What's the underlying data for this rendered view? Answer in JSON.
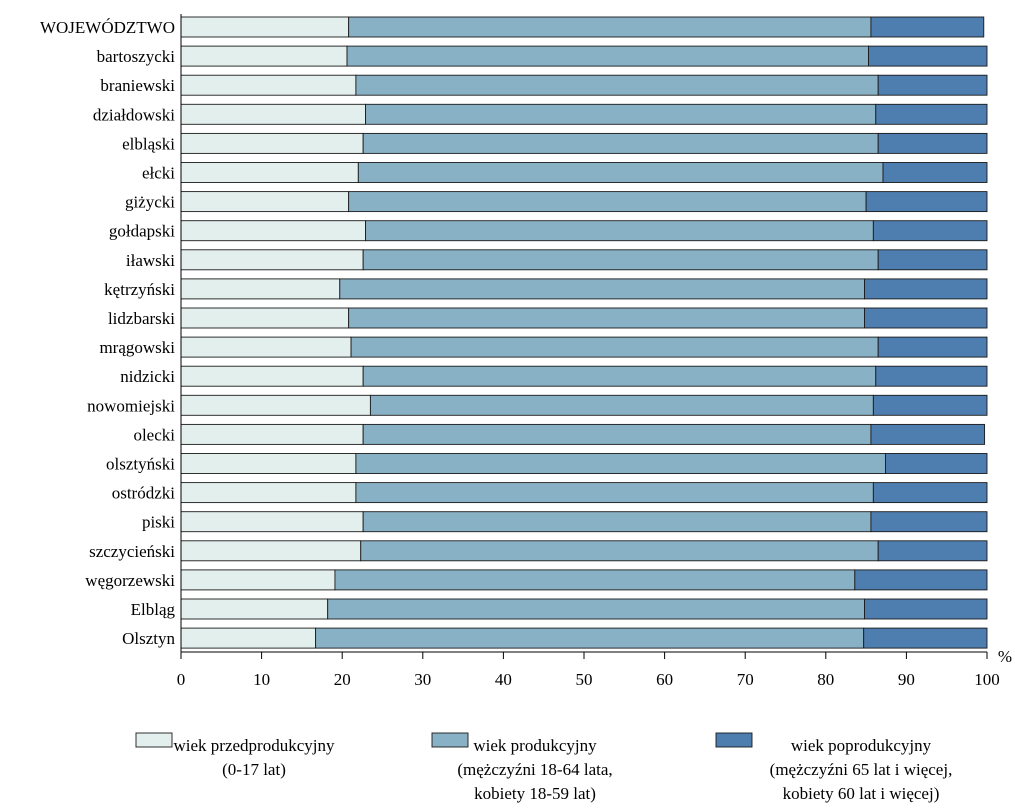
{
  "chart_data": {
    "type": "bar",
    "orientation": "horizontal",
    "stacked": true,
    "categories": [
      "WOJEWÓDZTWO",
      "bartoszycki",
      "braniewski",
      "działdowski",
      "elbląski",
      "ełcki",
      "giżycki",
      "gołdapski",
      "iławski",
      "kętrzyński",
      "lidzbarski",
      "mrągowski",
      "nidzicki",
      "nowomiejski",
      "olecki",
      "olsztyński",
      "ostródzki",
      "piski",
      "szczycieński",
      "węgorzewski",
      "Elbląg",
      "Olsztyn"
    ],
    "series": [
      {
        "name": "wiek przedprodukcyjny",
        "name_line2": "(0-17 lat)",
        "color": "#e3efed",
        "values": [
          20.8,
          20.6,
          21.7,
          22.9,
          22.6,
          22.0,
          20.8,
          22.9,
          22.6,
          19.7,
          20.8,
          21.1,
          22.6,
          23.5,
          22.6,
          21.7,
          21.7,
          22.6,
          22.3,
          19.1,
          18.2,
          16.7
        ]
      },
      {
        "name": "wiek produkcyjny",
        "name_line2": "(mężczyźni 18-64 lata,",
        "name_line3": "kobiety 18-59 lat)",
        "color": "#89b1c5",
        "values": [
          64.8,
          64.7,
          64.8,
          63.3,
          63.9,
          65.1,
          64.2,
          63.0,
          63.9,
          65.1,
          64.0,
          65.4,
          63.6,
          62.4,
          63.0,
          65.7,
          64.2,
          63.0,
          64.2,
          64.5,
          66.6,
          68.0
        ]
      },
      {
        "name": "wiek poprodukcyjny",
        "name_line2": "(mężczyźni 65 lat i więcej,",
        "name_line3": "kobiety 60 lat i więcej)",
        "color": "#4d7eaf",
        "values": [
          14.0,
          14.7,
          13.5,
          13.8,
          13.5,
          12.9,
          15.0,
          14.1,
          13.5,
          15.2,
          15.2,
          13.5,
          13.8,
          14.1,
          14.1,
          12.6,
          14.1,
          14.4,
          13.5,
          16.4,
          15.2,
          15.3
        ]
      }
    ],
    "xlim": [
      0,
      100
    ],
    "xticks": [
      "0",
      "10",
      "20",
      "30",
      "40",
      "50",
      "60",
      "70",
      "80",
      "90",
      "100"
    ],
    "xunit": "%",
    "legend_position": "bottom",
    "grid": false
  }
}
